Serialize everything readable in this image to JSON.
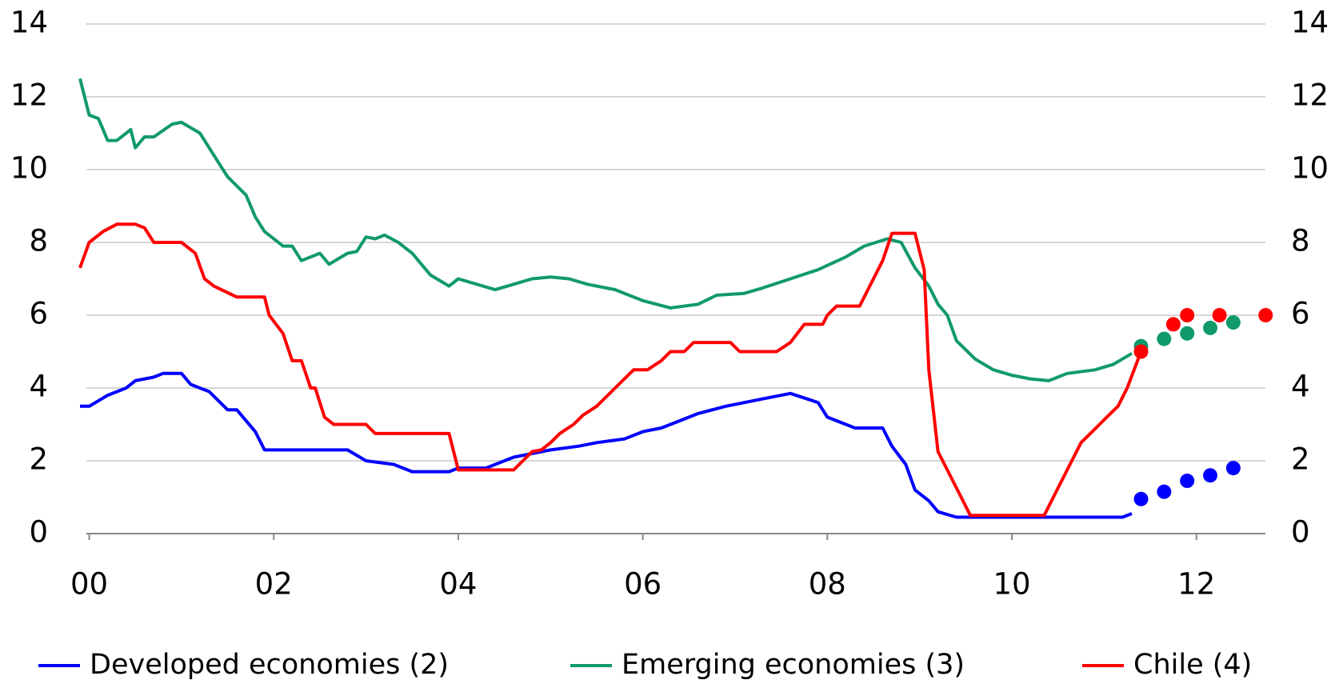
{
  "chart_data": {
    "type": "line",
    "xlim": [
      1999.9,
      2012.8
    ],
    "ylim": [
      0,
      14
    ],
    "yticks": [
      0,
      2,
      4,
      6,
      8,
      10,
      12,
      14
    ],
    "xticks": [
      {
        "value": 2000,
        "label": "00"
      },
      {
        "value": 2002,
        "label": "02"
      },
      {
        "value": 2004,
        "label": "04"
      },
      {
        "value": 2006,
        "label": "06"
      },
      {
        "value": 2008,
        "label": "08"
      },
      {
        "value": 2010,
        "label": "10"
      },
      {
        "value": 2012,
        "label": "12"
      }
    ],
    "grid": true,
    "series": [
      {
        "name": "Developed economies (2)",
        "color": "#0000ff",
        "x": [
          1999.9,
          2000.0,
          2000.2,
          2000.4,
          2000.5,
          2000.7,
          2000.8,
          2001.0,
          2001.1,
          2001.3,
          2001.5,
          2001.6,
          2001.8,
          2001.9,
          2002.0,
          2002.8,
          2003.0,
          2003.3,
          2003.5,
          2003.9,
          2004.0,
          2004.3,
          2004.6,
          2004.8,
          2005.0,
          2005.3,
          2005.5,
          2005.8,
          2006.0,
          2006.2,
          2006.4,
          2006.6,
          2006.9,
          2007.1,
          2007.3,
          2007.6,
          2007.9,
          2008.0,
          2008.3,
          2008.6,
          2008.7,
          2008.85,
          2008.95,
          2009.1,
          2009.2,
          2009.4,
          2011.2,
          2011.3
        ],
        "values": [
          3.5,
          3.5,
          3.8,
          4.0,
          4.2,
          4.3,
          4.4,
          4.4,
          4.1,
          3.9,
          3.4,
          3.4,
          2.8,
          2.3,
          2.3,
          2.3,
          2.0,
          1.9,
          1.7,
          1.7,
          1.8,
          1.8,
          2.1,
          2.2,
          2.3,
          2.4,
          2.5,
          2.6,
          2.8,
          2.9,
          3.1,
          3.3,
          3.5,
          3.6,
          3.7,
          3.85,
          3.6,
          3.2,
          2.9,
          2.9,
          2.4,
          1.9,
          1.2,
          0.9,
          0.6,
          0.45,
          0.45,
          0.55
        ],
        "forecast_x": [
          2011.4,
          2011.65,
          2011.9,
          2012.15,
          2012.4
        ],
        "forecast_values": [
          0.95,
          1.15,
          1.45,
          1.6,
          1.8
        ]
      },
      {
        "name": "Emerging economies (3)",
        "color": "#109a6a",
        "x": [
          1999.9,
          2000.0,
          2000.1,
          2000.2,
          2000.3,
          2000.4,
          2000.45,
          2000.5,
          2000.6,
          2000.7,
          2000.9,
          2001.0,
          2001.2,
          2001.4,
          2001.5,
          2001.7,
          2001.8,
          2001.9,
          2002.1,
          2002.2,
          2002.3,
          2002.5,
          2002.6,
          2002.8,
          2002.9,
          2003.0,
          2003.1,
          2003.2,
          2003.35,
          2003.5,
          2003.7,
          2003.9,
          2004.0,
          2004.2,
          2004.4,
          2004.6,
          2004.8,
          2005.0,
          2005.2,
          2005.4,
          2005.7,
          2006.0,
          2006.3,
          2006.6,
          2006.8,
          2007.1,
          2007.3,
          2007.6,
          2007.9,
          2008.2,
          2008.4,
          2008.65,
          2008.8,
          2008.95,
          2009.1,
          2009.2,
          2009.3,
          2009.4,
          2009.6,
          2009.8,
          2010.0,
          2010.2,
          2010.4,
          2010.6,
          2010.9,
          2011.1,
          2011.3
        ],
        "values": [
          12.5,
          11.5,
          11.4,
          10.8,
          10.8,
          11.0,
          11.1,
          10.6,
          10.9,
          10.9,
          11.25,
          11.3,
          11.0,
          10.2,
          9.8,
          9.3,
          8.7,
          8.3,
          7.9,
          7.9,
          7.5,
          7.7,
          7.4,
          7.7,
          7.75,
          8.15,
          8.1,
          8.2,
          8.0,
          7.7,
          7.1,
          6.8,
          7.0,
          6.85,
          6.7,
          6.85,
          7.0,
          7.05,
          7.0,
          6.85,
          6.7,
          6.4,
          6.2,
          6.3,
          6.55,
          6.6,
          6.75,
          7.0,
          7.25,
          7.6,
          7.9,
          8.1,
          8.0,
          7.3,
          6.8,
          6.3,
          6.0,
          5.3,
          4.8,
          4.5,
          4.35,
          4.25,
          4.2,
          4.4,
          4.5,
          4.65,
          4.95
        ],
        "forecast_x": [
          2011.4,
          2011.65,
          2011.9,
          2012.15,
          2012.4
        ],
        "forecast_values": [
          5.15,
          5.35,
          5.5,
          5.65,
          5.8
        ]
      },
      {
        "name": "Chile (4)",
        "color": "#ff0000",
        "x": [
          1999.9,
          2000.0,
          2000.15,
          2000.3,
          2000.5,
          2000.6,
          2000.7,
          2001.0,
          2001.15,
          2001.25,
          2001.35,
          2001.6,
          2001.9,
          2001.95,
          2002.1,
          2002.2,
          2002.3,
          2002.4,
          2002.45,
          2002.55,
          2002.65,
          2003.0,
          2003.1,
          2003.9,
          2004.0,
          2004.6,
          2004.7,
          2004.8,
          2004.9,
          2005.0,
          2005.1,
          2005.25,
          2005.35,
          2005.5,
          2005.7,
          2005.8,
          2005.9,
          2006.05,
          2006.2,
          2006.3,
          2006.45,
          2006.55,
          2006.95,
          2007.05,
          2007.45,
          2007.6,
          2007.75,
          2007.95,
          2008.0,
          2008.1,
          2008.35,
          2008.45,
          2008.6,
          2008.7,
          2008.95,
          2009.05,
          2009.1,
          2009.2,
          2009.3,
          2009.45,
          2009.55,
          2010.35,
          2010.45,
          2010.6,
          2010.75,
          2010.85,
          2010.95,
          2011.05,
          2011.15,
          2011.25,
          2011.4
        ],
        "values": [
          7.3,
          8.0,
          8.3,
          8.5,
          8.5,
          8.4,
          8.0,
          8.0,
          7.7,
          7.0,
          6.8,
          6.5,
          6.5,
          6.0,
          5.5,
          4.75,
          4.75,
          4.0,
          4.0,
          3.2,
          3.0,
          3.0,
          2.75,
          2.75,
          1.75,
          1.75,
          2.0,
          2.25,
          2.3,
          2.5,
          2.75,
          3.0,
          3.25,
          3.5,
          4.0,
          4.25,
          4.5,
          4.5,
          4.75,
          5.0,
          5.0,
          5.25,
          5.25,
          5.0,
          5.0,
          5.25,
          5.75,
          5.75,
          6.0,
          6.25,
          6.25,
          6.75,
          7.5,
          8.25,
          8.25,
          7.25,
          4.5,
          2.25,
          1.75,
          1.0,
          0.5,
          0.5,
          1.0,
          1.75,
          2.5,
          2.75,
          3.0,
          3.25,
          3.5,
          4.0,
          5.0
        ],
        "forecast_x": [
          2011.4,
          2011.75,
          2011.9,
          2012.25,
          2012.75
        ],
        "forecast_values": [
          5.0,
          5.75,
          6.0,
          6.0,
          6.0
        ]
      }
    ]
  }
}
